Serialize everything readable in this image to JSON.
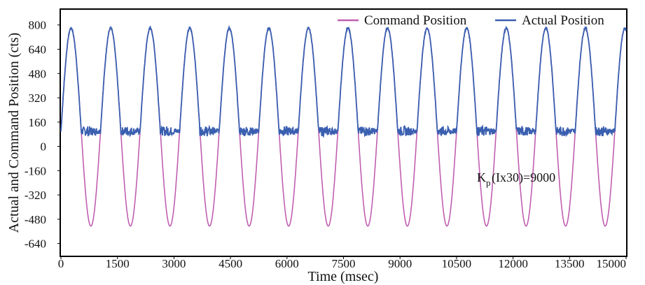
{
  "chart_data": {
    "type": "line",
    "title": "",
    "xlabel": "Time (msec)",
    "ylabel": "Actual and Command Position (cts)",
    "xlim": [
      0,
      15000
    ],
    "ylim": [
      -720,
      900
    ],
    "x_ticks": [
      0,
      1500,
      3000,
      4500,
      6000,
      7500,
      9000,
      10500,
      12000,
      13500,
      15000
    ],
    "y_ticks": [
      -640,
      -480,
      -320,
      -160,
      0,
      160,
      320,
      480,
      640,
      800
    ],
    "grid": false,
    "legend_position": "top-right",
    "series": [
      {
        "name": "Command Position",
        "color": "#c05fb0",
        "description_values": "sinusoidal command, peak ~780 cts, trough ~-525 cts, period ~1050 msec",
        "amplitude": 652,
        "offset": 127,
        "period_ms": 1050,
        "phase_peak_ms": 270
      },
      {
        "name": "Actual Position",
        "color": "#3a5fb0",
        "description_values": "follows command above ~100 cts, saturates near ~100 cts with oscillation in the lower half-cycle",
        "floor": 100,
        "ripple": 35
      }
    ],
    "annotation": {
      "main": "K",
      "sub": "p",
      "rest": "(Ix30)=9000"
    }
  }
}
